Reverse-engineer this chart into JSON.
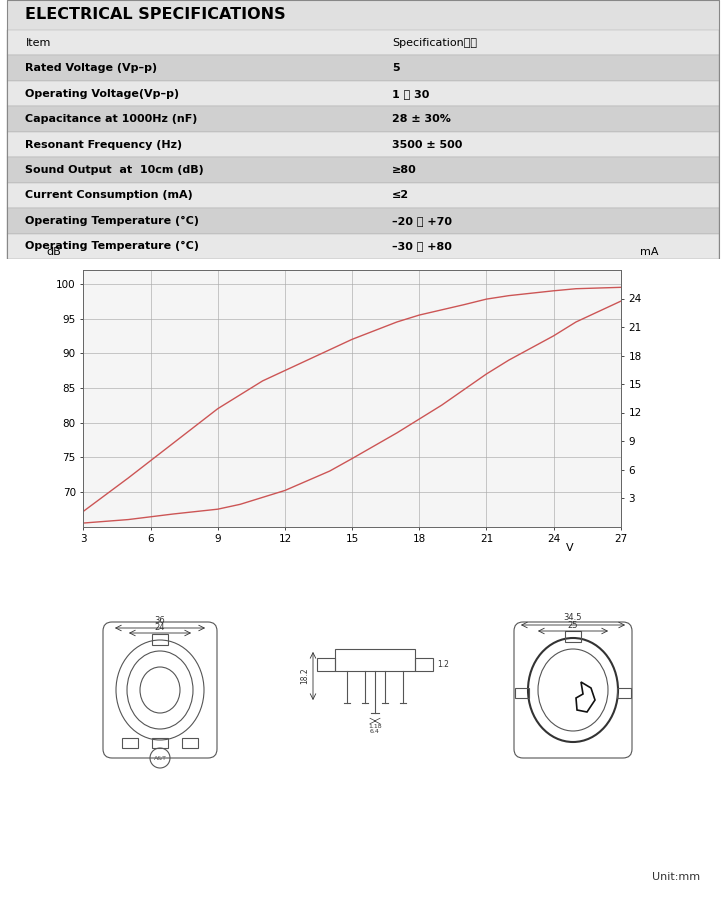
{
  "title": "ELECTRICAL SPECIFICATIONS",
  "table_rows": [
    [
      "Item",
      "Specification规格"
    ],
    [
      "Rated Voltage (Vp–p)",
      "5"
    ],
    [
      "Operating Voltage(Vp–p)",
      "1 ～ 30"
    ],
    [
      "Capacitance at 1000Hz (nF)",
      "28 ± 30%"
    ],
    [
      "Resonant Frequency (Hz)",
      "3500 ± 500"
    ],
    [
      "Sound Output  at  10cm (dB)",
      "≥80"
    ],
    [
      "Current Consumption (mA)",
      "≤2"
    ],
    [
      "Operating Temperature (°C)",
      "–20 ～ +70"
    ],
    [
      "Operating Temperature (°C)",
      "–30 ～ +80"
    ]
  ],
  "shaded_rows": [
    1,
    3,
    5,
    7
  ],
  "bg_color": "#ffffff",
  "curve1_x": [
    3,
    5,
    7,
    9,
    11,
    13,
    15,
    17,
    18,
    20,
    21,
    22,
    24,
    25,
    27
  ],
  "curve1_y": [
    67.2,
    72,
    77,
    82,
    86,
    89,
    92,
    94.5,
    95.5,
    97,
    97.8,
    98.3,
    99,
    99.3,
    99.5
  ],
  "curve2_x": [
    3,
    5,
    7,
    9,
    10,
    12,
    14,
    15,
    17,
    18,
    19,
    21,
    22,
    24,
    25,
    27
  ],
  "curve2_y": [
    65.5,
    66.0,
    66.8,
    67.5,
    68.2,
    70.2,
    73.0,
    74.8,
    78.5,
    80.5,
    82.5,
    87.0,
    89.0,
    92.5,
    94.5,
    97.5
  ],
  "curve_color": "#cc5555",
  "db_ylim": [
    65,
    102
  ],
  "db_yticks": [
    70,
    75,
    80,
    85,
    90,
    95,
    100
  ],
  "ma_yticks": [
    3,
    6,
    9,
    12,
    15,
    18,
    21,
    24
  ],
  "xlim": [
    3,
    27
  ],
  "xticks": [
    3,
    6,
    9,
    12,
    15,
    18,
    21,
    24,
    27
  ],
  "unit_mm": "Unit:mm"
}
